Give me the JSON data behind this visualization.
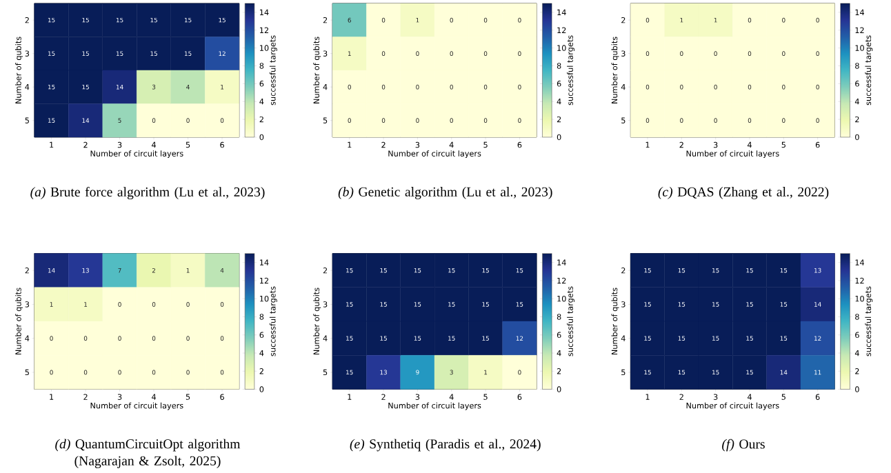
{
  "chart_data": [
    {
      "type": "heatmap",
      "categories": [
        "1",
        "2",
        "3",
        "4",
        "5",
        "6"
      ],
      "y_categories": [
        "2",
        "3",
        "4",
        "5"
      ],
      "cells": [
        [
          15,
          15,
          15,
          15,
          15,
          15
        ],
        [
          15,
          15,
          15,
          15,
          15,
          12
        ],
        [
          15,
          15,
          14,
          3,
          4,
          1
        ],
        [
          15,
          14,
          5,
          0,
          0,
          0
        ]
      ],
      "clim": [
        0,
        15
      ],
      "cticks": [
        0,
        2,
        4,
        6,
        8,
        10,
        12,
        14
      ],
      "xlabel": "Number of circuit layers",
      "ylabel": "Number of qubits",
      "clabel": "successful targets",
      "data_labels": true,
      "annotations": [
        "*(a)* Brute force algorithm (Lu et al., 2023)"
      ]
    },
    {
      "type": "heatmap",
      "categories": [
        "1",
        "2",
        "3",
        "4",
        "5",
        "6"
      ],
      "y_categories": [
        "2",
        "3",
        "4",
        "5"
      ],
      "cells": [
        [
          6,
          0,
          1,
          0,
          0,
          0
        ],
        [
          1,
          0,
          0,
          0,
          0,
          0
        ],
        [
          0,
          0,
          0,
          0,
          0,
          0
        ],
        [
          0,
          0,
          0,
          0,
          0,
          0
        ]
      ],
      "clim": [
        0,
        15
      ],
      "cticks": [
        0,
        2,
        4,
        6,
        8,
        10,
        12,
        14
      ],
      "xlabel": "Number of circuit layers",
      "ylabel": "Number of qubits",
      "clabel": "successful targets",
      "data_labels": true,
      "annotations": [
        "*(b)* Genetic algorithm (Lu et al., 2023)"
      ]
    },
    {
      "type": "heatmap",
      "categories": [
        "1",
        "2",
        "3",
        "4",
        "5",
        "6"
      ],
      "y_categories": [
        "2",
        "3",
        "4",
        "5"
      ],
      "cells": [
        [
          0,
          1,
          1,
          0,
          0,
          0
        ],
        [
          0,
          0,
          0,
          0,
          0,
          0
        ],
        [
          0,
          0,
          0,
          0,
          0,
          0
        ],
        [
          0,
          0,
          0,
          0,
          0,
          0
        ]
      ],
      "clim": [
        0,
        15
      ],
      "cticks": [
        0,
        2,
        4,
        6,
        8,
        10,
        12,
        14
      ],
      "xlabel": "Number of circuit layers",
      "ylabel": "Number of qubits",
      "clabel": "successful targets",
      "data_labels": true,
      "annotations": [
        "*(c)* DQAS (Zhang et al., 2022)"
      ]
    },
    {
      "type": "heatmap",
      "categories": [
        "1",
        "2",
        "3",
        "4",
        "5",
        "6"
      ],
      "y_categories": [
        "2",
        "3",
        "4",
        "5"
      ],
      "cells": [
        [
          14,
          13,
          7,
          2,
          1,
          4
        ],
        [
          1,
          1,
          0,
          0,
          0,
          0
        ],
        [
          0,
          0,
          0,
          0,
          0,
          0
        ],
        [
          0,
          0,
          0,
          0,
          0,
          0
        ]
      ],
      "clim": [
        0,
        15
      ],
      "cticks": [
        0,
        2,
        4,
        6,
        8,
        10,
        12,
        14
      ],
      "xlabel": "Number of circuit layers",
      "ylabel": "Number of qubits",
      "clabel": "successful targets",
      "data_labels": true,
      "annotations": [
        "*(d)* QuantumCircuitOpt algorithm (Nagarajan & Zsolt, 2025)"
      ]
    },
    {
      "type": "heatmap",
      "categories": [
        "1",
        "2",
        "3",
        "4",
        "5",
        "6"
      ],
      "y_categories": [
        "2",
        "3",
        "4",
        "5"
      ],
      "cells": [
        [
          15,
          15,
          15,
          15,
          15,
          15
        ],
        [
          15,
          15,
          15,
          15,
          15,
          15
        ],
        [
          15,
          15,
          15,
          15,
          15,
          12
        ],
        [
          15,
          13,
          9,
          3,
          1,
          0
        ]
      ],
      "clim": [
        0,
        15
      ],
      "cticks": [
        0,
        2,
        4,
        6,
        8,
        10,
        12,
        14
      ],
      "xlabel": "Number of circuit layers",
      "ylabel": "Number of qubits",
      "clabel": "successful targets",
      "data_labels": true,
      "annotations": [
        "*(e)* Synthetiq (Paradis et al., 2024)"
      ]
    },
    {
      "type": "heatmap",
      "categories": [
        "1",
        "2",
        "3",
        "4",
        "5",
        "6"
      ],
      "y_categories": [
        "2",
        "3",
        "4",
        "5"
      ],
      "cells": [
        [
          15,
          15,
          15,
          15,
          15,
          13
        ],
        [
          15,
          15,
          15,
          15,
          15,
          14
        ],
        [
          15,
          15,
          15,
          15,
          15,
          12
        ],
        [
          15,
          15,
          15,
          15,
          14,
          11
        ]
      ],
      "clim": [
        0,
        15
      ],
      "cticks": [
        0,
        2,
        4,
        6,
        8,
        10,
        12,
        14
      ],
      "xlabel": "Number of circuit layers",
      "ylabel": "Number of qubits",
      "clabel": "successful targets",
      "data_labels": true,
      "annotations": [
        "*(f)* Ours"
      ]
    }
  ]
}
